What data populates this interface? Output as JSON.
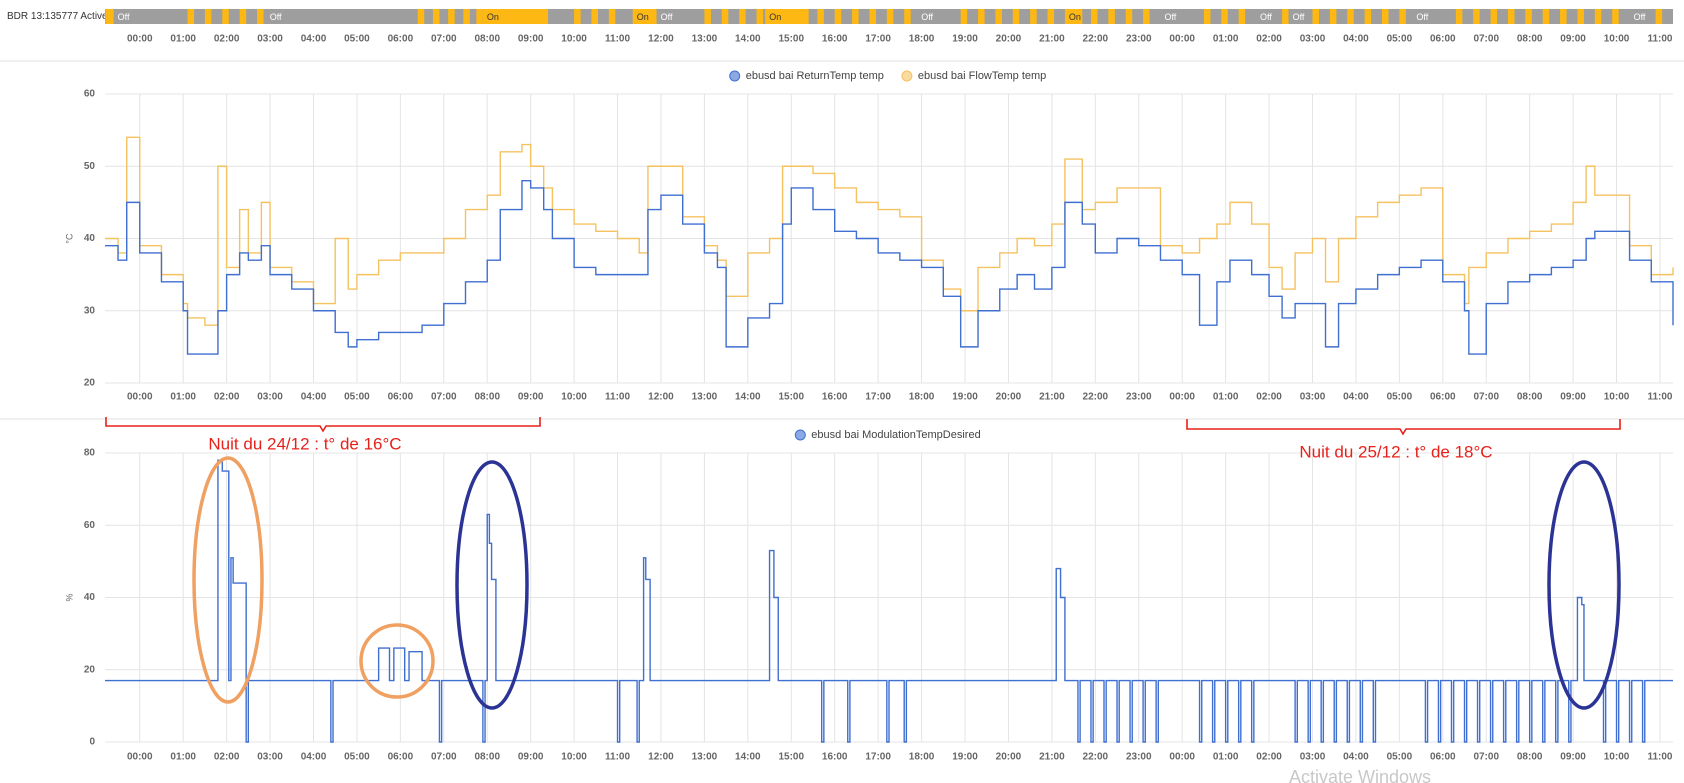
{
  "time_axis": {
    "xlim": [
      -0.8,
      35.3
    ],
    "xticks": [
      {
        "value": 0,
        "label": "00:00"
      },
      {
        "value": 1,
        "label": "01:00"
      },
      {
        "value": 2,
        "label": "02:00"
      },
      {
        "value": 3,
        "label": "03:00"
      },
      {
        "value": 4,
        "label": "04:00"
      },
      {
        "value": 5,
        "label": "05:00"
      },
      {
        "value": 6,
        "label": "06:00"
      },
      {
        "value": 7,
        "label": "07:00"
      },
      {
        "value": 8,
        "label": "08:00"
      },
      {
        "value": 9,
        "label": "09:00"
      },
      {
        "value": 10,
        "label": "10:00"
      },
      {
        "value": 11,
        "label": "11:00"
      },
      {
        "value": 12,
        "label": "12:00"
      },
      {
        "value": 13,
        "label": "13:00"
      },
      {
        "value": 14,
        "label": "14:00"
      },
      {
        "value": 15,
        "label": "15:00"
      },
      {
        "value": 16,
        "label": "16:00"
      },
      {
        "value": 17,
        "label": "17:00"
      },
      {
        "value": 18,
        "label": "18:00"
      },
      {
        "value": 19,
        "label": "19:00"
      },
      {
        "value": 20,
        "label": "20:00"
      },
      {
        "value": 21,
        "label": "21:00"
      },
      {
        "value": 22,
        "label": "22:00"
      },
      {
        "value": 23,
        "label": "23:00"
      },
      {
        "value": 24,
        "label": "00:00"
      },
      {
        "value": 25,
        "label": "01:00"
      },
      {
        "value": 26,
        "label": "02:00"
      },
      {
        "value": 27,
        "label": "03:00"
      },
      {
        "value": 28,
        "label": "04:00"
      },
      {
        "value": 29,
        "label": "05:00"
      },
      {
        "value": 30,
        "label": "06:00"
      },
      {
        "value": 31,
        "label": "07:00"
      },
      {
        "value": 32,
        "label": "08:00"
      },
      {
        "value": 33,
        "label": "09:00"
      },
      {
        "value": 34,
        "label": "10:00"
      },
      {
        "value": 35,
        "label": "11:00"
      }
    ]
  },
  "chart_data": [
    {
      "type": "timeline",
      "label": "BDR 13:135777 Active",
      "color": "#9e9e9e",
      "colors": {
        "On": "#fdb813",
        "Off": "#9e9e9e"
      },
      "text_colors": {
        "On": "#333333",
        "Off": "#ffffff"
      },
      "segments": [
        [
          -0.79,
          -0.6,
          "On"
        ],
        [
          -0.6,
          1.1,
          "Off"
        ],
        [
          1.1,
          1.25,
          "On"
        ],
        [
          1.5,
          1.65,
          "On"
        ],
        [
          1.9,
          2.05,
          "On"
        ],
        [
          2.3,
          2.45,
          "On"
        ],
        [
          2.7,
          2.85,
          "On"
        ],
        [
          2.9,
          6.4,
          "Off"
        ],
        [
          6.4,
          6.55,
          "On"
        ],
        [
          6.75,
          6.9,
          "On"
        ],
        [
          7.1,
          7.25,
          "On"
        ],
        [
          7.45,
          7.6,
          "On"
        ],
        [
          7.75,
          7.9,
          "On"
        ],
        [
          7.9,
          9.4,
          "On"
        ],
        [
          10.0,
          10.15,
          "On"
        ],
        [
          10.4,
          10.55,
          "On"
        ],
        [
          10.8,
          10.95,
          "On"
        ],
        [
          11.35,
          11.9,
          "On"
        ],
        [
          11.9,
          13.0,
          "Off"
        ],
        [
          13.0,
          13.15,
          "On"
        ],
        [
          13.4,
          13.55,
          "On"
        ],
        [
          13.8,
          13.95,
          "On"
        ],
        [
          14.2,
          14.35,
          "On"
        ],
        [
          14.4,
          15.4,
          "On"
        ],
        [
          15.6,
          15.75,
          "On"
        ],
        [
          16.0,
          16.15,
          "On"
        ],
        [
          16.4,
          16.55,
          "On"
        ],
        [
          16.8,
          16.95,
          "On"
        ],
        [
          17.2,
          17.35,
          "On"
        ],
        [
          17.6,
          17.75,
          "On"
        ],
        [
          17.9,
          18.8,
          "Off"
        ],
        [
          18.9,
          19.05,
          "On"
        ],
        [
          19.3,
          19.45,
          "On"
        ],
        [
          19.7,
          19.85,
          "On"
        ],
        [
          20.1,
          20.25,
          "On"
        ],
        [
          20.5,
          20.65,
          "On"
        ],
        [
          20.9,
          21.05,
          "On"
        ],
        [
          21.3,
          21.7,
          "On"
        ],
        [
          21.9,
          22.05,
          "On"
        ],
        [
          22.3,
          22.45,
          "On"
        ],
        [
          22.7,
          22.85,
          "On"
        ],
        [
          23.1,
          23.25,
          "On"
        ],
        [
          23.5,
          24.4,
          "Off"
        ],
        [
          24.5,
          24.65,
          "On"
        ],
        [
          24.9,
          25.05,
          "On"
        ],
        [
          25.3,
          25.45,
          "On"
        ],
        [
          25.7,
          26.3,
          "Off"
        ],
        [
          26.3,
          26.45,
          "On"
        ],
        [
          26.45,
          27.0,
          "Off"
        ],
        [
          27.0,
          27.15,
          "On"
        ],
        [
          27.4,
          27.55,
          "On"
        ],
        [
          27.8,
          27.95,
          "On"
        ],
        [
          28.2,
          28.35,
          "On"
        ],
        [
          28.6,
          28.75,
          "On"
        ],
        [
          29.0,
          29.15,
          "On"
        ],
        [
          29.3,
          30.2,
          "Off"
        ],
        [
          30.3,
          30.45,
          "On"
        ],
        [
          30.7,
          30.85,
          "On"
        ],
        [
          31.1,
          31.25,
          "On"
        ],
        [
          31.5,
          31.65,
          "On"
        ],
        [
          31.9,
          32.05,
          "On"
        ],
        [
          32.3,
          32.45,
          "On"
        ],
        [
          32.7,
          32.85,
          "On"
        ],
        [
          33.1,
          33.25,
          "On"
        ],
        [
          33.5,
          33.65,
          "On"
        ],
        [
          33.9,
          34.05,
          "On"
        ],
        [
          34.3,
          34.8,
          "Off"
        ],
        [
          34.9,
          35.05,
          "On"
        ]
      ]
    },
    {
      "type": "line",
      "step": true,
      "grid": true,
      "ylabel": "°C",
      "ylim": [
        20,
        60
      ],
      "yticks": [
        20,
        30,
        40,
        50,
        60
      ],
      "x": [
        -0.8,
        -0.5,
        -0.3,
        0,
        0.5,
        1.0,
        1.1,
        1.5,
        1.8,
        2.0,
        2.3,
        2.5,
        2.8,
        3.0,
        3.5,
        4.0,
        4.5,
        4.8,
        5.0,
        5.5,
        6.0,
        6.5,
        7.0,
        7.5,
        8.0,
        8.3,
        8.8,
        9.0,
        9.3,
        9.5,
        10.0,
        10.5,
        11.0,
        11.5,
        11.7,
        12.0,
        12.5,
        13.0,
        13.3,
        13.5,
        14.0,
        14.5,
        14.8,
        15.0,
        15.5,
        16.0,
        16.5,
        17.0,
        17.5,
        18.0,
        18.5,
        18.9,
        19.3,
        19.8,
        20.2,
        20.6,
        21.0,
        21.3,
        21.7,
        22.0,
        22.5,
        23.0,
        23.5,
        24.0,
        24.4,
        24.8,
        25.1,
        25.6,
        26.0,
        26.3,
        26.6,
        27.0,
        27.3,
        27.6,
        28.0,
        28.5,
        29.0,
        29.5,
        30.0,
        30.5,
        30.6,
        31.0,
        31.5,
        32.0,
        32.5,
        33.0,
        33.3,
        33.5,
        34.0,
        34.3,
        34.8,
        35.3
      ],
      "series": [
        {
          "name": "ebusd bai ReturnTemp temp",
          "color": "#3f6fd1",
          "values": [
            39,
            37,
            45,
            38,
            34,
            30,
            24,
            24,
            30,
            35,
            38,
            37,
            39,
            35,
            33,
            30,
            27,
            25,
            26,
            27,
            27,
            28,
            31,
            34,
            37,
            44,
            48,
            47,
            44,
            40,
            36,
            35,
            35,
            35,
            44,
            46,
            42,
            38,
            36,
            25,
            29,
            31,
            42,
            47,
            44,
            41,
            40,
            38,
            37,
            36,
            32,
            25,
            30,
            33,
            35,
            33,
            36,
            45,
            42,
            38,
            40,
            39,
            37,
            35,
            28,
            34,
            37,
            35,
            32,
            29,
            31,
            31,
            25,
            31,
            33,
            35,
            36,
            37,
            34,
            30,
            24,
            31,
            34,
            35,
            36,
            37,
            40,
            41,
            41,
            37,
            34,
            28
          ]
        },
        {
          "name": "ebusd bai FlowTemp temp",
          "color": "#f5c260",
          "values": [
            40,
            38,
            54,
            39,
            35,
            31,
            29,
            28,
            50,
            36,
            44,
            38,
            45,
            36,
            34,
            31,
            40,
            33,
            35,
            37,
            38,
            38,
            40,
            44,
            46,
            52,
            53,
            50,
            47,
            44,
            42,
            41,
            40,
            38,
            50,
            50,
            43,
            39,
            37,
            32,
            38,
            40,
            50,
            50,
            49,
            47,
            45,
            44,
            43,
            37,
            33,
            30,
            36,
            38,
            40,
            39,
            42,
            51,
            44,
            45,
            47,
            47,
            39,
            38,
            40,
            42,
            45,
            42,
            36,
            33,
            38,
            40,
            34,
            40,
            43,
            45,
            46,
            47,
            35,
            31,
            36,
            38,
            40,
            41,
            42,
            45,
            50,
            46,
            46,
            39,
            35,
            36
          ]
        }
      ]
    },
    {
      "type": "line",
      "step": true,
      "grid": true,
      "ylabel": "%",
      "ylim": [
        0,
        80
      ],
      "yticks": [
        0,
        20,
        40,
        60,
        80
      ],
      "x": [
        -0.8,
        1.8,
        1.9,
        2.05,
        2.1,
        2.15,
        2.45,
        2.5,
        4.4,
        4.45,
        5.5,
        5.75,
        5.85,
        6.1,
        6.2,
        6.5,
        6.9,
        6.95,
        7.9,
        7.95,
        8.0,
        8.05,
        8.1,
        8.2,
        11.0,
        11.05,
        11.45,
        11.5,
        11.6,
        11.65,
        11.75,
        14.5,
        14.6,
        14.7,
        15.7,
        15.75,
        16.3,
        16.35,
        17.2,
        17.25,
        17.6,
        17.65,
        21.1,
        21.2,
        21.3,
        21.6,
        21.65,
        21.9,
        21.95,
        22.2,
        22.25,
        22.5,
        22.55,
        22.8,
        22.85,
        23.1,
        23.15,
        23.4,
        23.45,
        24.4,
        24.45,
        24.7,
        24.75,
        25.0,
        25.05,
        25.3,
        25.35,
        25.6,
        25.65,
        26.6,
        26.65,
        26.9,
        26.95,
        27.2,
        27.25,
        27.5,
        27.55,
        27.8,
        27.85,
        28.1,
        28.15,
        28.4,
        28.45,
        29.6,
        29.65,
        29.9,
        29.95,
        30.2,
        30.25,
        30.5,
        30.55,
        30.8,
        30.85,
        31.1,
        31.15,
        31.4,
        31.45,
        31.7,
        31.75,
        32.0,
        32.05,
        32.3,
        32.35,
        32.6,
        32.65,
        32.9,
        32.95,
        33.1,
        33.2,
        33.25,
        33.7,
        33.75,
        34.0,
        34.05,
        34.3,
        34.35,
        34.6,
        34.65,
        35.3
      ],
      "series": [
        {
          "name": "ebusd bai ModulationTempDesired",
          "color": "#3f6fd1",
          "values": [
            17,
            78,
            75,
            17,
            51,
            44,
            0,
            17,
            0,
            17,
            26,
            17,
            26,
            17,
            25,
            17,
            0,
            17,
            0,
            17,
            63,
            55,
            45,
            17,
            0,
            17,
            0,
            17,
            51,
            45,
            17,
            53,
            40,
            17,
            0,
            17,
            0,
            17,
            0,
            17,
            0,
            17,
            48,
            40,
            17,
            0,
            17,
            0,
            17,
            0,
            17,
            0,
            17,
            0,
            17,
            0,
            17,
            0,
            17,
            0,
            17,
            0,
            17,
            0,
            17,
            0,
            17,
            0,
            17,
            0,
            17,
            0,
            17,
            0,
            17,
            0,
            17,
            0,
            17,
            0,
            17,
            0,
            17,
            0,
            17,
            0,
            17,
            0,
            17,
            0,
            17,
            0,
            17,
            0,
            17,
            0,
            17,
            0,
            17,
            0,
            17,
            0,
            17,
            0,
            17,
            0,
            17,
            40,
            38,
            17,
            0,
            17,
            0,
            17,
            0,
            17,
            0,
            17,
            17
          ]
        }
      ]
    }
  ],
  "annotations": [
    "Nuit du 24/12 : t° de 16°C",
    "Nuit du 25/12 : t° de 18°C"
  ],
  "watermark": "Activate Windows"
}
